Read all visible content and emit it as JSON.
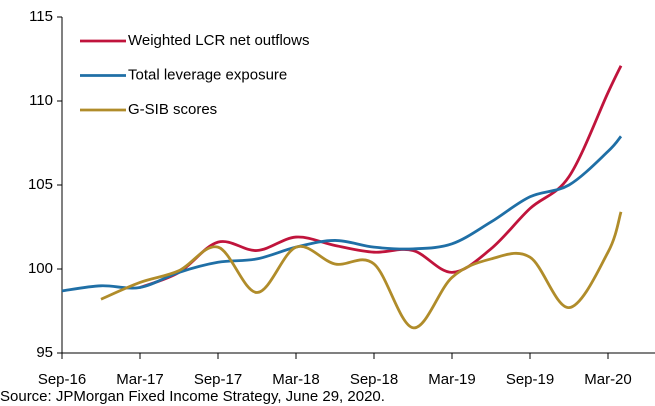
{
  "chart_data": {
    "type": "line",
    "x": [
      "Sep-16",
      "Dec-16",
      "Mar-17",
      "Jun-17",
      "Sep-17",
      "Dec-17",
      "Mar-18",
      "Jun-18",
      "Sep-18",
      "Dec-18",
      "Mar-19",
      "Jun-19",
      "Sep-19",
      "Dec-19",
      "Mar-20",
      "Apr-20"
    ],
    "xticks": [
      "Sep-16",
      "Mar-17",
      "Sep-17",
      "Mar-18",
      "Sep-18",
      "Mar-19",
      "Sep-19",
      "Mar-20"
    ],
    "series": [
      {
        "name": "Weighted LCR net outflows",
        "color": "#c0143c",
        "values": [
          null,
          null,
          98.9,
          99.8,
          101.6,
          101.1,
          101.9,
          101.4,
          101.0,
          101.1,
          99.8,
          101.2,
          103.6,
          105.5,
          110.5,
          112.1
        ]
      },
      {
        "name": "Total leverage exposure",
        "color": "#1f6fa6",
        "values": [
          98.7,
          99.0,
          98.9,
          99.8,
          100.4,
          100.6,
          101.3,
          101.7,
          101.3,
          101.2,
          101.5,
          102.8,
          104.3,
          105.0,
          107.0,
          107.9
        ]
      },
      {
        "name": "G-SIB scores",
        "color": "#b08c2a",
        "values": [
          null,
          98.2,
          99.2,
          99.9,
          101.3,
          98.6,
          101.3,
          100.3,
          100.3,
          96.5,
          99.5,
          100.6,
          100.7,
          97.7,
          101.0,
          103.4
        ]
      }
    ],
    "ylim": [
      95,
      115
    ],
    "yticks": [
      95,
      100,
      105,
      110,
      115
    ],
    "source": "Source: JPMorgan Fixed Income Strategy, June 29, 2020."
  }
}
